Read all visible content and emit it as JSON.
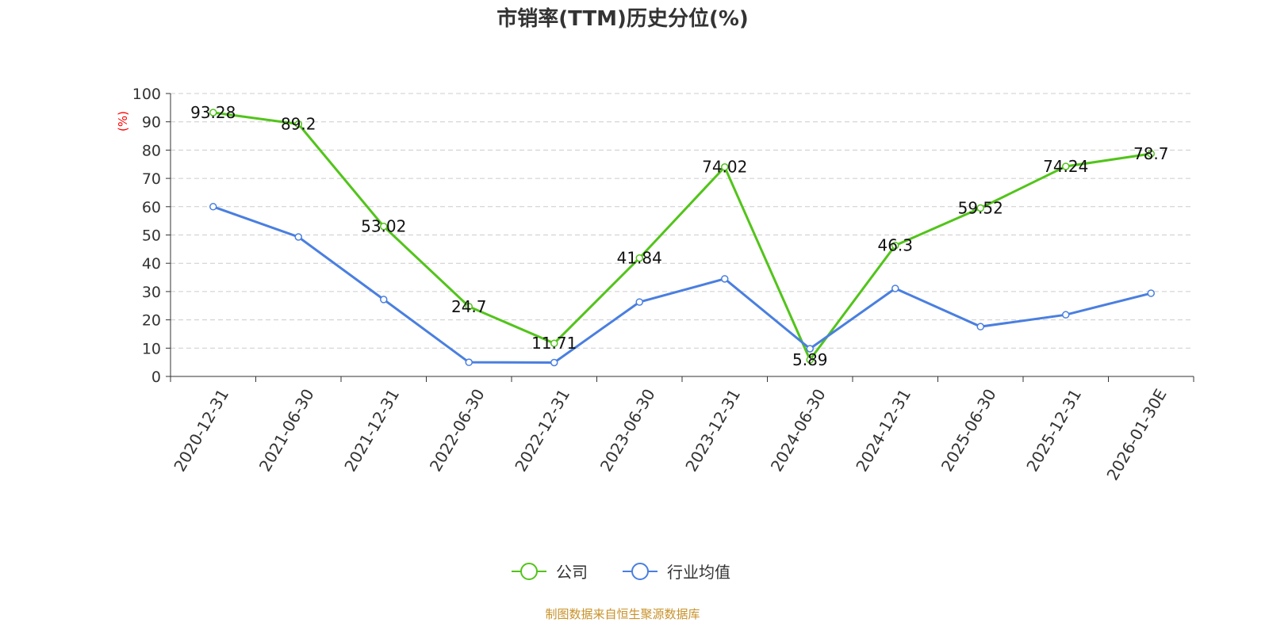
{
  "chart_data": {
    "type": "line",
    "title": "市销率(TTM)历史分位(%)",
    "ylabel": "(%)",
    "xlabel": "",
    "ylim": [
      0,
      100
    ],
    "yticks": [
      "0",
      "10",
      "20",
      "30",
      "40",
      "50",
      "60",
      "70",
      "80",
      "90",
      "100"
    ],
    "grid": true,
    "legend_placement": "bottom-center",
    "categories": [
      "2020-12-31",
      "2021-06-30",
      "2021-12-31",
      "2022-06-30",
      "2022-12-31",
      "2023-06-30",
      "2023-12-31",
      "2024-06-30",
      "2024-12-31",
      "2025-06-30",
      "2025-12-31",
      "2026-01-30E"
    ],
    "series": [
      {
        "name": "公司",
        "color": "#52c41a",
        "values": [
          93.28,
          89.2,
          53.02,
          24.7,
          11.71,
          41.84,
          74.02,
          5.89,
          46.3,
          59.52,
          74.24,
          78.7
        ],
        "labels": [
          "93.28",
          "89.2",
          "53.02",
          "24.7",
          "11.71",
          "41.84",
          "74.02",
          "5.89",
          "46.3",
          "59.52",
          "74.24",
          "78.7"
        ]
      },
      {
        "name": "行业均值",
        "color": "#4a7fe0",
        "values": [
          60.0,
          49.3,
          27.2,
          5.0,
          4.9,
          26.3,
          34.5,
          9.8,
          31.1,
          17.6,
          21.8,
          29.4
        ]
      }
    ]
  },
  "source": "制图数据来自恒生聚源数据库"
}
